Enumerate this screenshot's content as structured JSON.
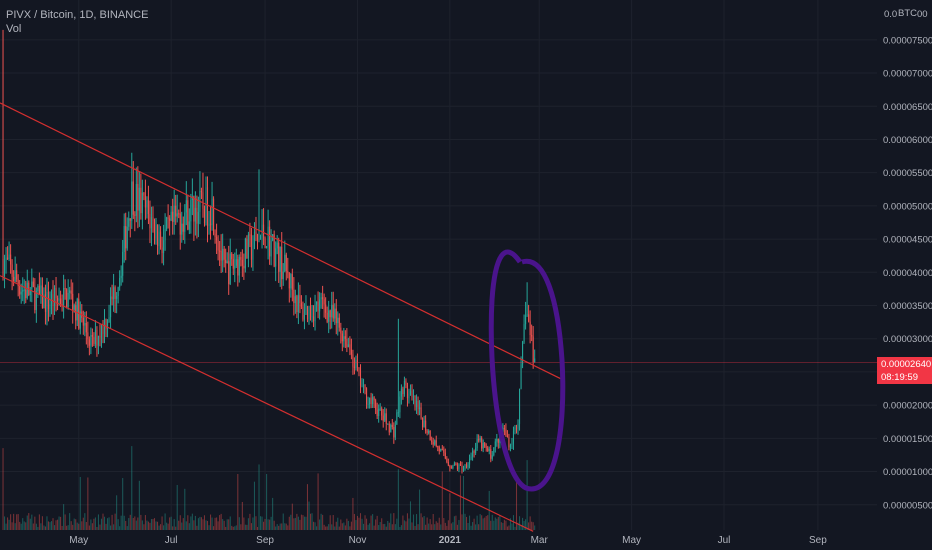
{
  "symbol_line": "PIVX / Bitcoin, 1D, BINANCE",
  "volume_label": "Vol",
  "currency_label": "BTC",
  "currency_prefix": "0.0",
  "currency_suffix": "00",
  "last_price": "0.00002640",
  "countdown": "08:19:59",
  "colors": {
    "background": "#131722",
    "up": "#26a69a",
    "down": "#ef5350",
    "channel_line": "#d32f2f",
    "annotation": "#4a148c",
    "price_tag": "#f23645",
    "grid": "#1e222d",
    "axis_text": "#b2b5be"
  },
  "chart_data": {
    "type": "candlestick",
    "title": "PIVX / Bitcoin, 1D, BINANCE",
    "y_axis": {
      "ticks": [
        "0.00000500",
        "0.00001000",
        "0.00001500",
        "0.00002000",
        "0.00002500",
        "0.00003000",
        "0.00003500",
        "0.00004000",
        "0.00004500",
        "0.00005000",
        "0.00005500",
        "0.00006000",
        "0.00006500",
        "0.00007000",
        "0.00007500"
      ],
      "tick_values": [
        5e-06,
        1e-05,
        1.5e-05,
        2e-05,
        2.5e-05,
        3e-05,
        3.5e-05,
        4e-05,
        4.5e-05,
        5e-05,
        5.5e-05,
        6e-05,
        6.5e-05,
        7e-05,
        7.5e-05
      ],
      "range": [
        1.2e-06,
        8.1e-05
      ]
    },
    "x_axis": {
      "ticks": [
        "May",
        "Jul",
        "Sep",
        "Nov",
        "2021",
        "Mar",
        "May",
        "Jul",
        "Sep"
      ],
      "tick_dates": [
        "2020-05-01",
        "2020-07-01",
        "2020-09-01",
        "2020-11-01",
        "2021-01-01",
        "2021-03-01",
        "2021-05-01",
        "2021-07-01",
        "2021-09-01"
      ],
      "range": [
        "2020-03-10",
        "2021-10-10"
      ]
    },
    "price_path": [
      {
        "date": "2020-03-12",
        "price": 4.2e-05
      },
      {
        "date": "2020-03-25",
        "price": 3.75e-05
      },
      {
        "date": "2020-04-10",
        "price": 3.55e-05
      },
      {
        "date": "2020-04-25",
        "price": 3.65e-05
      },
      {
        "date": "2020-05-10",
        "price": 2.9e-05
      },
      {
        "date": "2020-05-20",
        "price": 3.35e-05
      },
      {
        "date": "2020-05-28",
        "price": 4e-05
      },
      {
        "date": "2020-06-05",
        "price": 5.2e-05
      },
      {
        "date": "2020-06-15",
        "price": 4.9e-05
      },
      {
        "date": "2020-06-25",
        "price": 4.45e-05
      },
      {
        "date": "2020-07-05",
        "price": 4.8e-05
      },
      {
        "date": "2020-07-15",
        "price": 4.95e-05
      },
      {
        "date": "2020-07-28",
        "price": 5e-05
      },
      {
        "date": "2020-08-05",
        "price": 4e-05
      },
      {
        "date": "2020-08-20",
        "price": 4.3e-05
      },
      {
        "date": "2020-09-01",
        "price": 4.6e-05
      },
      {
        "date": "2020-09-15",
        "price": 4e-05
      },
      {
        "date": "2020-09-25",
        "price": 3.4e-05
      },
      {
        "date": "2020-10-10",
        "price": 3.5e-05
      },
      {
        "date": "2020-10-25",
        "price": 3e-05
      },
      {
        "date": "2020-11-05",
        "price": 2.2e-05
      },
      {
        "date": "2020-11-15",
        "price": 1.9e-05
      },
      {
        "date": "2020-11-25",
        "price": 1.6e-05
      },
      {
        "date": "2020-12-01",
        "price": 2.3e-05
      },
      {
        "date": "2020-12-10",
        "price": 1.95e-05
      },
      {
        "date": "2020-12-20",
        "price": 1.5e-05
      },
      {
        "date": "2021-01-01",
        "price": 1.1e-05
      },
      {
        "date": "2021-01-10",
        "price": 1.05e-05
      },
      {
        "date": "2021-01-20",
        "price": 1.45e-05
      },
      {
        "date": "2021-01-28",
        "price": 1.25e-05
      },
      {
        "date": "2021-02-05",
        "price": 1.65e-05
      },
      {
        "date": "2021-02-10",
        "price": 1.4e-05
      },
      {
        "date": "2021-02-15",
        "price": 1.8e-05
      },
      {
        "date": "2021-02-20",
        "price": 3.5e-05
      },
      {
        "date": "2021-02-26",
        "price": 2.64e-05
      }
    ],
    "spikes": [
      {
        "date": "2020-03-12",
        "high": 7.65e-05
      },
      {
        "date": "2020-06-05",
        "high": 5.8e-05
      },
      {
        "date": "2020-08-28",
        "high": 5.55e-05
      },
      {
        "date": "2020-11-28",
        "high": 3.3e-05
      },
      {
        "date": "2021-02-21",
        "high": 3.85e-05
      }
    ],
    "channel_upper": [
      {
        "date": "2020-03-10",
        "price": 6.55e-05
      },
      {
        "date": "2021-03-15",
        "price": 2.4e-05
      }
    ],
    "channel_lower": [
      {
        "date": "2020-03-10",
        "price": 3.95e-05
      },
      {
        "date": "2021-02-25",
        "price": 1e-06
      }
    ],
    "last_price": 2.64e-05,
    "annotation": "ellipse around Feb-2021 breakout"
  }
}
